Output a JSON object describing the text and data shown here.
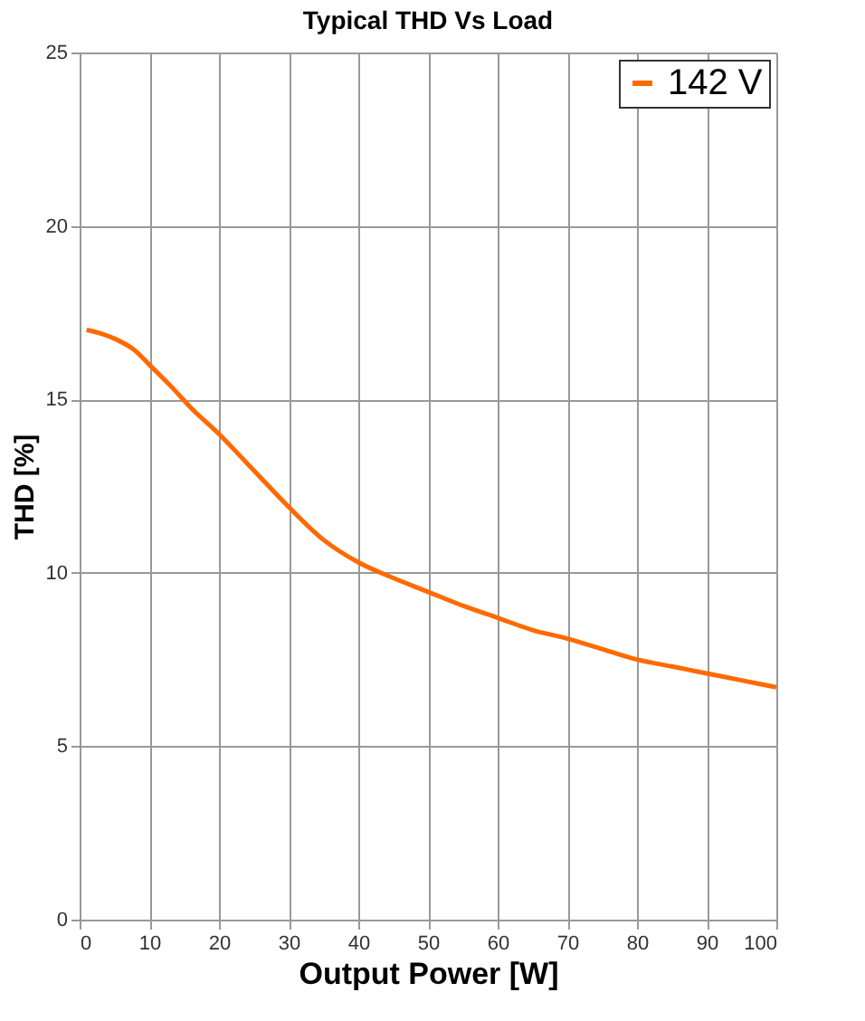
{
  "chart_data": {
    "type": "line",
    "title": "Typical THD Vs Load",
    "xlabel": "Output Power [W]",
    "ylabel": "THD [%]",
    "series": [
      {
        "name": "142 V",
        "color": "#ff6a00",
        "x": [
          1,
          3,
          5,
          8,
          10,
          13,
          16,
          20,
          25,
          30,
          35,
          40,
          45,
          50,
          55,
          60,
          65,
          70,
          75,
          80,
          85,
          90,
          95,
          100
        ],
        "values": [
          17.0,
          16.9,
          16.75,
          16.4,
          16.0,
          15.4,
          14.75,
          14.0,
          12.95,
          11.9,
          10.95,
          10.3,
          9.85,
          9.45,
          9.05,
          8.7,
          8.35,
          8.1,
          7.8,
          7.5,
          7.3,
          7.1,
          6.9,
          6.7
        ]
      }
    ],
    "xlim": [
      0,
      100
    ],
    "xticks": [
      0,
      10,
      20,
      30,
      40,
      50,
      60,
      70,
      80,
      90,
      100
    ],
    "ylim": [
      0,
      25
    ],
    "yticks": [
      0,
      5,
      10,
      15,
      20,
      25
    ],
    "grid": true,
    "legend": "top right",
    "marker": "none",
    "line_style": "solid"
  }
}
